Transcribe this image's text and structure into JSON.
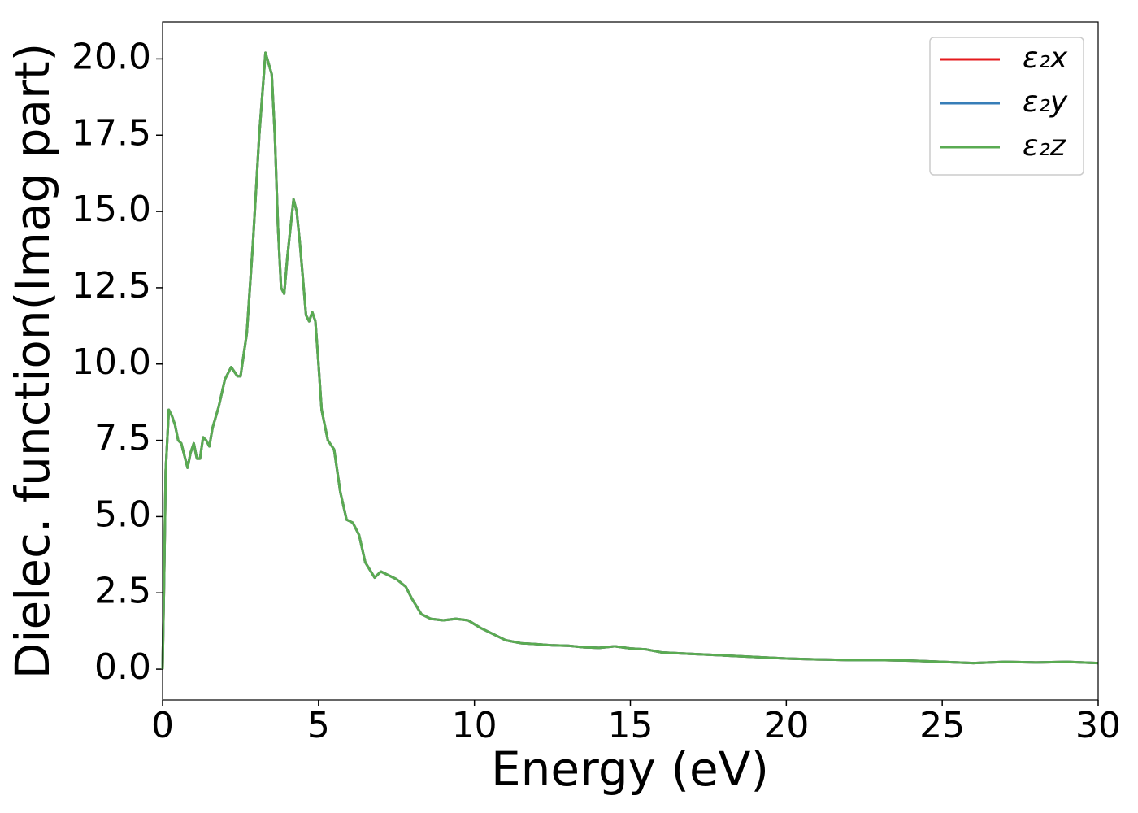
{
  "chart_data": {
    "type": "line",
    "xlabel": "Energy (eV)",
    "ylabel": "Dielec. function(Imag part)",
    "x": [
      0,
      0.05,
      0.1,
      0.2,
      0.3,
      0.4,
      0.5,
      0.6,
      0.7,
      0.8,
      0.9,
      1.0,
      1.1,
      1.2,
      1.3,
      1.4,
      1.5,
      1.6,
      1.8,
      2.0,
      2.2,
      2.4,
      2.5,
      2.7,
      2.9,
      3.1,
      3.3,
      3.5,
      3.6,
      3.7,
      3.8,
      3.9,
      4.0,
      4.2,
      4.3,
      4.4,
      4.5,
      4.6,
      4.7,
      4.8,
      4.9,
      5.0,
      5.1,
      5.3,
      5.5,
      5.7,
      5.9,
      6.1,
      6.3,
      6.5,
      6.8,
      7.0,
      7.2,
      7.5,
      7.8,
      8.0,
      8.3,
      8.6,
      9.0,
      9.4,
      9.8,
      10.2,
      10.7,
      11.0,
      11.5,
      12.0,
      12.5,
      13.0,
      13.5,
      14.0,
      14.5,
      15.0,
      15.5,
      16.0,
      17,
      18,
      19,
      20,
      21,
      22,
      23,
      24,
      25,
      26,
      27,
      28,
      29,
      30
    ],
    "series": [
      {
        "name": "ε₂x",
        "color": "#e41a1c",
        "values": [
          0,
          3,
          6.5,
          8.5,
          8.3,
          8.0,
          7.5,
          7.4,
          7.0,
          6.6,
          7.1,
          7.4,
          6.9,
          6.9,
          7.6,
          7.5,
          7.3,
          7.9,
          8.6,
          9.5,
          9.9,
          9.6,
          9.6,
          11.0,
          14.0,
          17.5,
          20.2,
          19.5,
          17.5,
          14.5,
          12.5,
          12.3,
          13.5,
          15.4,
          15.0,
          14.0,
          12.8,
          11.6,
          11.4,
          11.7,
          11.4,
          10.0,
          8.5,
          7.5,
          7.2,
          5.8,
          4.9,
          4.8,
          4.4,
          3.5,
          3.0,
          3.2,
          3.1,
          2.95,
          2.7,
          2.3,
          1.8,
          1.65,
          1.6,
          1.65,
          1.6,
          1.35,
          1.1,
          0.95,
          0.85,
          0.82,
          0.78,
          0.77,
          0.72,
          0.7,
          0.75,
          0.68,
          0.65,
          0.55,
          0.5,
          0.45,
          0.4,
          0.35,
          0.32,
          0.3,
          0.3,
          0.28,
          0.24,
          0.2,
          0.24,
          0.22,
          0.24,
          0.2
        ]
      },
      {
        "name": "ε₂y",
        "color": "#377eb8",
        "values": [
          0,
          3,
          6.5,
          8.5,
          8.3,
          8.0,
          7.5,
          7.4,
          7.0,
          6.6,
          7.1,
          7.4,
          6.9,
          6.9,
          7.6,
          7.5,
          7.3,
          7.9,
          8.6,
          9.5,
          9.9,
          9.6,
          9.6,
          11.0,
          14.0,
          17.5,
          20.2,
          19.5,
          17.5,
          14.5,
          12.5,
          12.3,
          13.5,
          15.4,
          15.0,
          14.0,
          12.8,
          11.6,
          11.4,
          11.7,
          11.4,
          10.0,
          8.5,
          7.5,
          7.2,
          5.8,
          4.9,
          4.8,
          4.4,
          3.5,
          3.0,
          3.2,
          3.1,
          2.95,
          2.7,
          2.3,
          1.8,
          1.65,
          1.6,
          1.65,
          1.6,
          1.35,
          1.1,
          0.95,
          0.85,
          0.82,
          0.78,
          0.77,
          0.72,
          0.7,
          0.75,
          0.68,
          0.65,
          0.55,
          0.5,
          0.45,
          0.4,
          0.35,
          0.32,
          0.3,
          0.3,
          0.28,
          0.24,
          0.2,
          0.24,
          0.22,
          0.24,
          0.2
        ]
      },
      {
        "name": "ε₂z",
        "color": "#5aab52",
        "values": [
          0,
          3,
          6.5,
          8.5,
          8.3,
          8.0,
          7.5,
          7.4,
          7.0,
          6.6,
          7.1,
          7.4,
          6.9,
          6.9,
          7.6,
          7.5,
          7.3,
          7.9,
          8.6,
          9.5,
          9.9,
          9.6,
          9.6,
          11.0,
          14.0,
          17.5,
          20.2,
          19.5,
          17.5,
          14.5,
          12.5,
          12.3,
          13.5,
          15.4,
          15.0,
          14.0,
          12.8,
          11.6,
          11.4,
          11.7,
          11.4,
          10.0,
          8.5,
          7.5,
          7.2,
          5.8,
          4.9,
          4.8,
          4.4,
          3.5,
          3.0,
          3.2,
          3.1,
          2.95,
          2.7,
          2.3,
          1.8,
          1.65,
          1.6,
          1.65,
          1.6,
          1.35,
          1.1,
          0.95,
          0.85,
          0.82,
          0.78,
          0.77,
          0.72,
          0.7,
          0.75,
          0.68,
          0.65,
          0.55,
          0.5,
          0.45,
          0.4,
          0.35,
          0.32,
          0.3,
          0.3,
          0.28,
          0.24,
          0.2,
          0.24,
          0.22,
          0.24,
          0.2
        ]
      }
    ],
    "xlim": [
      0,
      30
    ],
    "xticks": [
      0,
      5,
      10,
      15,
      20,
      25,
      30
    ],
    "ylim": [
      -1.01,
      21.21
    ],
    "yticks": [
      {
        "value": 0,
        "label": "0.0"
      },
      2.5,
      {
        "value": 5,
        "label": "5.0"
      },
      7.5,
      {
        "value": 10,
        "label": "10.0"
      },
      12.5,
      {
        "value": 15,
        "label": "15.0"
      },
      17.5,
      {
        "value": 20,
        "label": "20.0"
      }
    ],
    "legend": "upper right"
  }
}
